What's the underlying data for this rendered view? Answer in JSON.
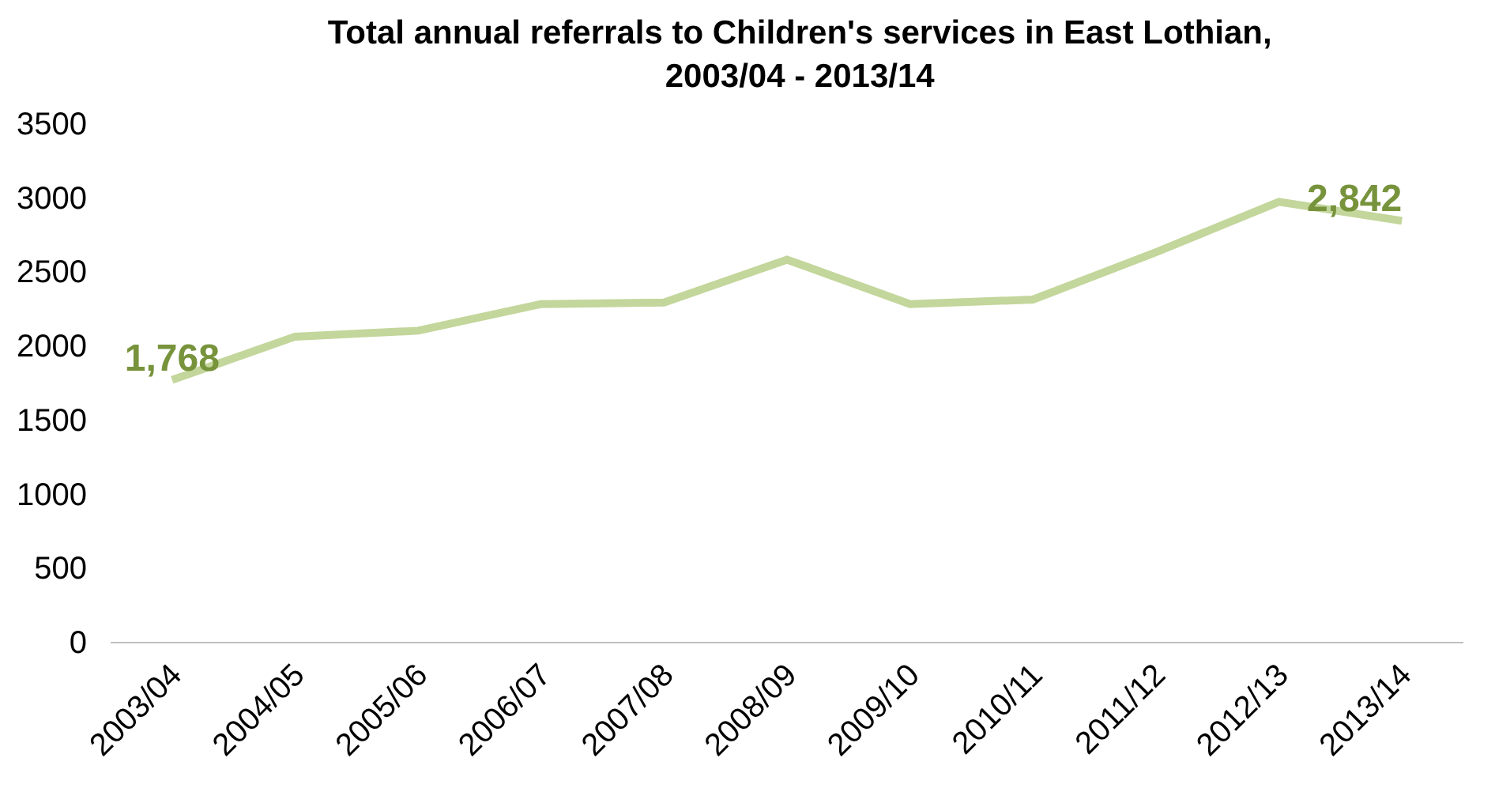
{
  "chart_data": {
    "type": "line",
    "title": "Total annual referrals to Children's services in East Lothian,\n2003/04 - 2013/14",
    "categories": [
      "2003/04",
      "2004/05",
      "2005/06",
      "2006/07",
      "2007/08",
      "2008/09",
      "2009/10",
      "2010/11",
      "2011/12",
      "2012/13",
      "2013/14"
    ],
    "series": [
      {
        "color": "#c3d69b",
        "values": [
          1768,
          2060,
          2100,
          2280,
          2290,
          2580,
          2280,
          2310,
          2630,
          2970,
          2842
        ],
        "value_labels": [
          "1,768",
          null,
          null,
          null,
          null,
          null,
          null,
          null,
          null,
          null,
          "2,842"
        ]
      }
    ],
    "ylim": [
      0,
      3500
    ],
    "yticks": [
      0,
      500,
      1000,
      1500,
      2000,
      2500,
      3000,
      3500
    ],
    "grid": false,
    "marker": "none",
    "line_style": "solid"
  }
}
